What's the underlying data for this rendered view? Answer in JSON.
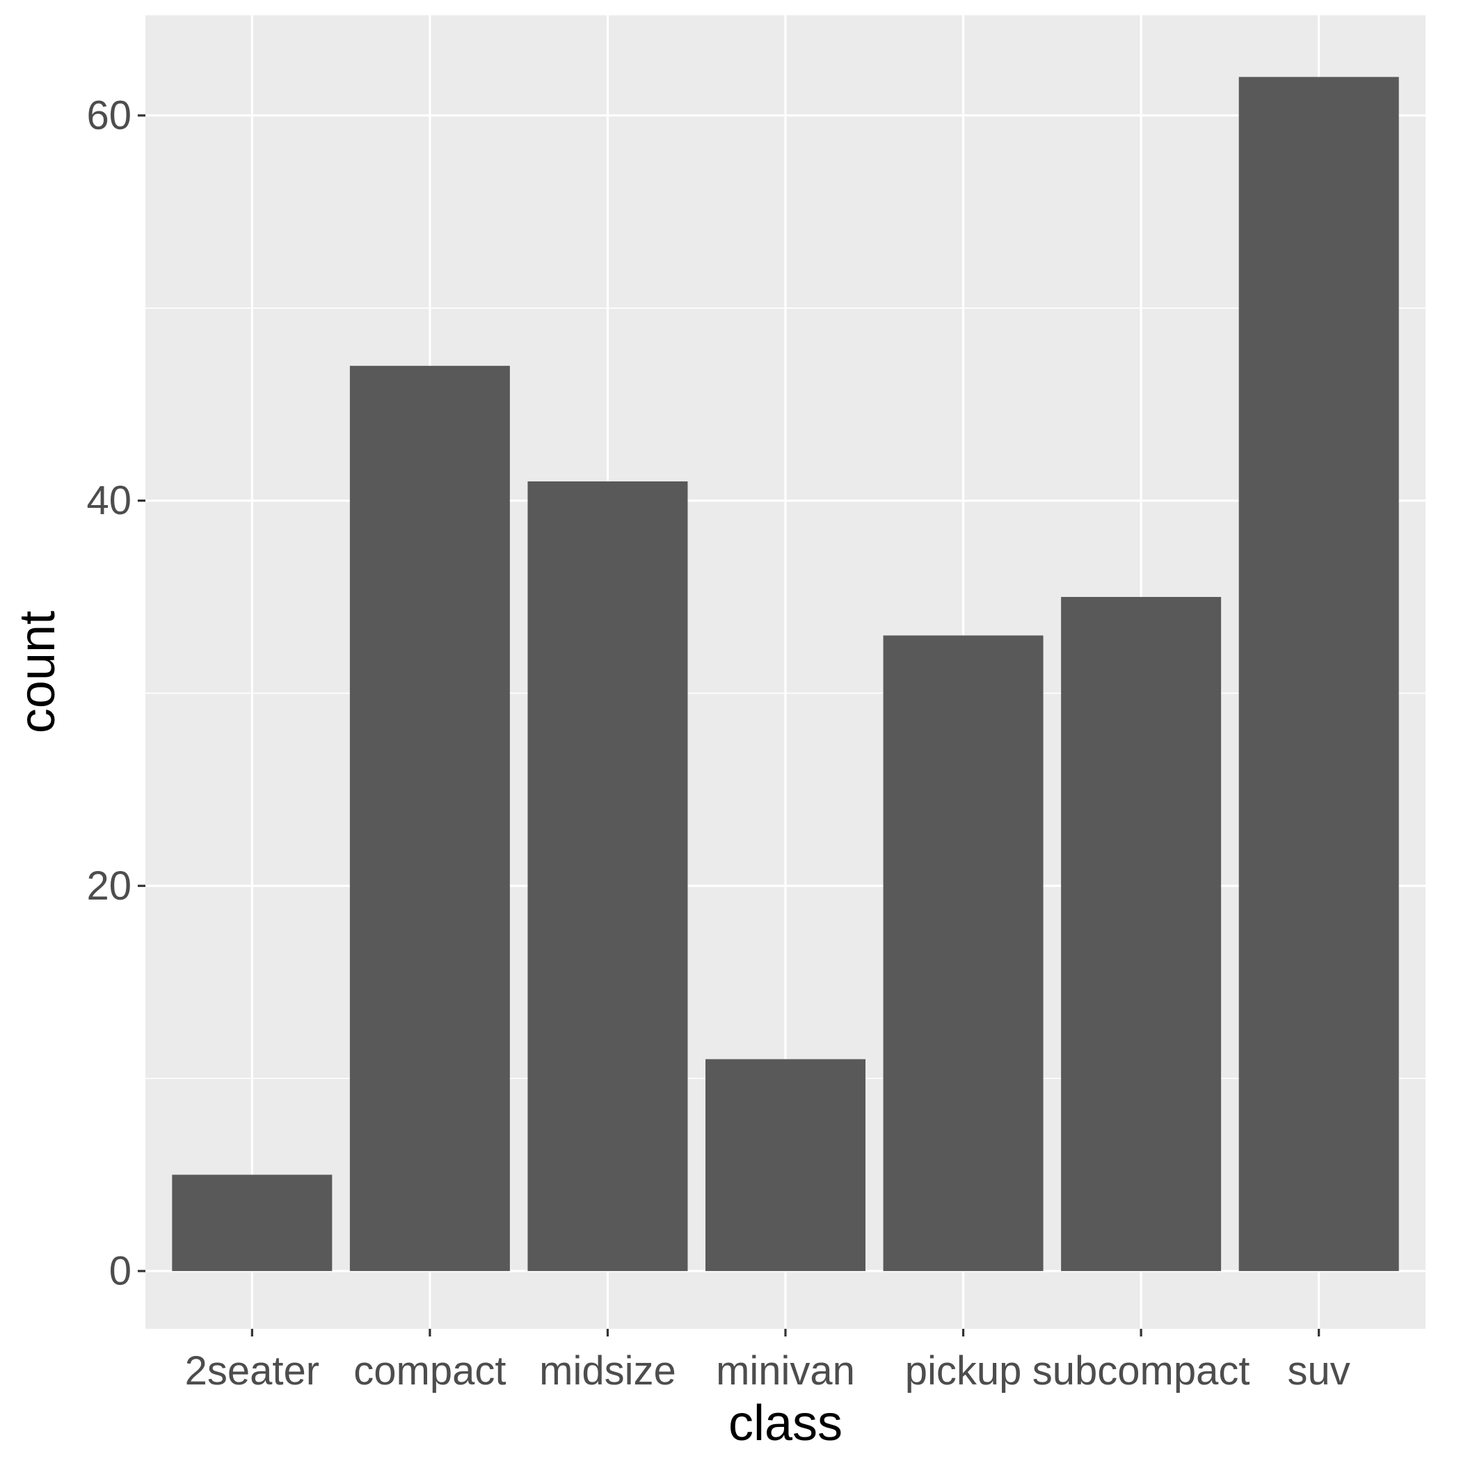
{
  "chart_data": {
    "type": "bar",
    "xlabel": "class",
    "ylabel": "count",
    "categories": [
      "2seater",
      "compact",
      "midsize",
      "minivan",
      "pickup",
      "subcompact",
      "suv"
    ],
    "values": [
      5,
      47,
      41,
      11,
      33,
      35,
      62
    ],
    "ylim": [
      -3,
      65.2
    ],
    "y_ticks": [
      0,
      20,
      40,
      60
    ],
    "y_tick_labels": [
      "0",
      "20",
      "40",
      "60"
    ],
    "grid": true,
    "legend": "none",
    "colors": {
      "bar": "#595959",
      "panel": "#EBEBEB",
      "grid": "#FFFFFF",
      "tick_text": "#4D4D4D",
      "title_text": "#000000"
    }
  }
}
